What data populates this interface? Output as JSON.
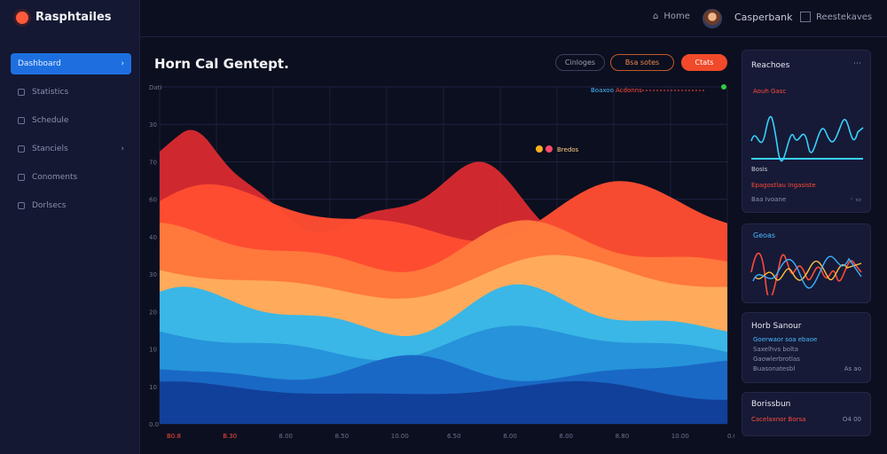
{
  "app": {
    "title": "Rasphtailes"
  },
  "sidebar": {
    "items": [
      {
        "label": "Dashboard",
        "active": true
      },
      {
        "label": "Statistics"
      },
      {
        "label": "Schedule"
      },
      {
        "label": "Stanciels"
      },
      {
        "label": "Conoments"
      },
      {
        "label": "Dorlsecs"
      }
    ]
  },
  "topbar": {
    "home": "Home",
    "user": "Casperbank",
    "settings": "Reestekaves"
  },
  "main": {
    "title": "Horn Cal Gentept.",
    "buttons": [
      "Cinloges",
      "Bsa sotes",
      "Ctats"
    ]
  },
  "chart_data": {
    "type": "area",
    "ylabels": [
      "Dati",
      "30",
      "70",
      "60",
      "40",
      "30",
      "20",
      "10",
      "10",
      "0.0"
    ],
    "xlabels": [
      "B0.8",
      "B.30",
      "8.00",
      "8.50",
      "10.00",
      "6.50",
      "8.00",
      "8.00",
      "8.80",
      "10.00",
      "0.00"
    ],
    "legend": [
      "Boaxoo",
      "Acdonns"
    ],
    "annotation": "Bredos",
    "series_colors": [
      "#d62a2f",
      "#ff4d32",
      "#ff7a3d",
      "#ffac5c",
      "#34b7ea",
      "#2592d9",
      "#1a66c4",
      "#123f9a"
    ]
  },
  "panels": {
    "p1": {
      "title": "Reachoes",
      "label": "Aouh Gasc",
      "foot1": "Bosis",
      "foot2": "Epagostlau Ingasiste",
      "foot3": "Baa Ivoane"
    },
    "p2": {
      "title": "Geoas"
    },
    "p3": {
      "title": "Horb Sanour",
      "lines": [
        "Goerwaor soa ebaoe",
        "Saxelhvs bolta",
        "Gaowlerbrotlas",
        "Buasonatesbl"
      ],
      "foot": "As ao"
    },
    "p4": {
      "title": "Borissbun",
      "sub": "Cacelaxnor Borsa",
      "foot": "O4 00"
    }
  },
  "colors": {
    "accent": "#1d6fe0",
    "danger": "#f04a2a",
    "cyan": "#3ad0ff"
  }
}
